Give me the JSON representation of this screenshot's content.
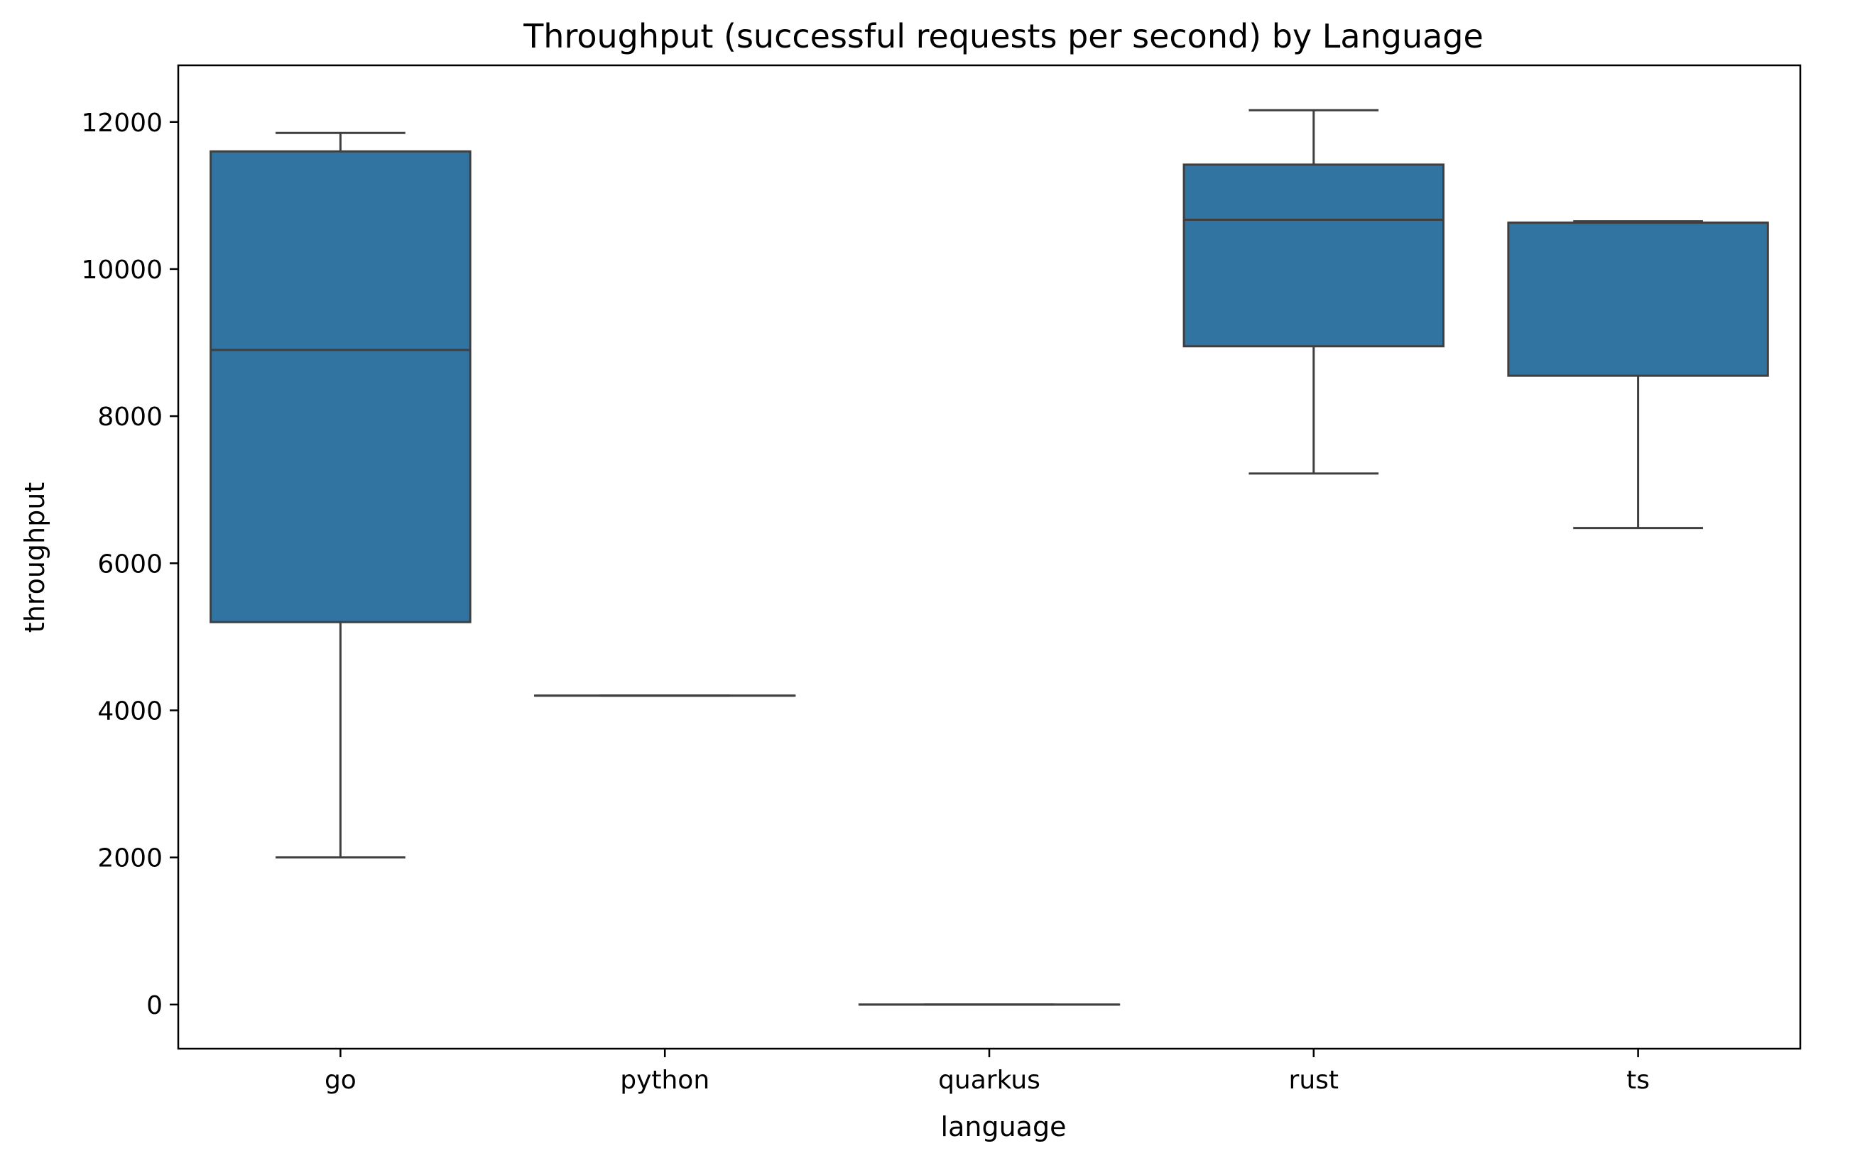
{
  "chart_data": {
    "type": "box",
    "title": "Throughput (successful requests per second) by Language",
    "xlabel": "language",
    "ylabel": "throughput",
    "ylim": [
      -600,
      12770
    ],
    "yticks": [
      0,
      2000,
      4000,
      6000,
      8000,
      10000,
      12000
    ],
    "yticks_labels": [
      "0",
      "2000",
      "4000",
      "6000",
      "8000",
      "10000",
      "12000"
    ],
    "grid": false,
    "box_color": "#3274a1",
    "line_color": "#3f3f3f",
    "categories": [
      "go",
      "python",
      "quarkus",
      "rust",
      "ts"
    ],
    "boxes": [
      {
        "name": "go",
        "whisker_low": 2000,
        "q1": 5200,
        "median": 8900,
        "q3": 11600,
        "whisker_high": 11850
      },
      {
        "name": "python",
        "whisker_low": 4200,
        "q1": 4200,
        "median": 4200,
        "q3": 4200,
        "whisker_high": 4200
      },
      {
        "name": "quarkus",
        "whisker_low": 0,
        "q1": 0,
        "median": 0,
        "q3": 0,
        "whisker_high": 0
      },
      {
        "name": "rust",
        "whisker_low": 7220,
        "q1": 8950,
        "median": 10670,
        "q3": 11420,
        "whisker_high": 12160
      },
      {
        "name": "ts",
        "whisker_low": 6480,
        "q1": 8550,
        "median": 10630,
        "q3": 10630,
        "whisker_high": 10650
      }
    ]
  }
}
